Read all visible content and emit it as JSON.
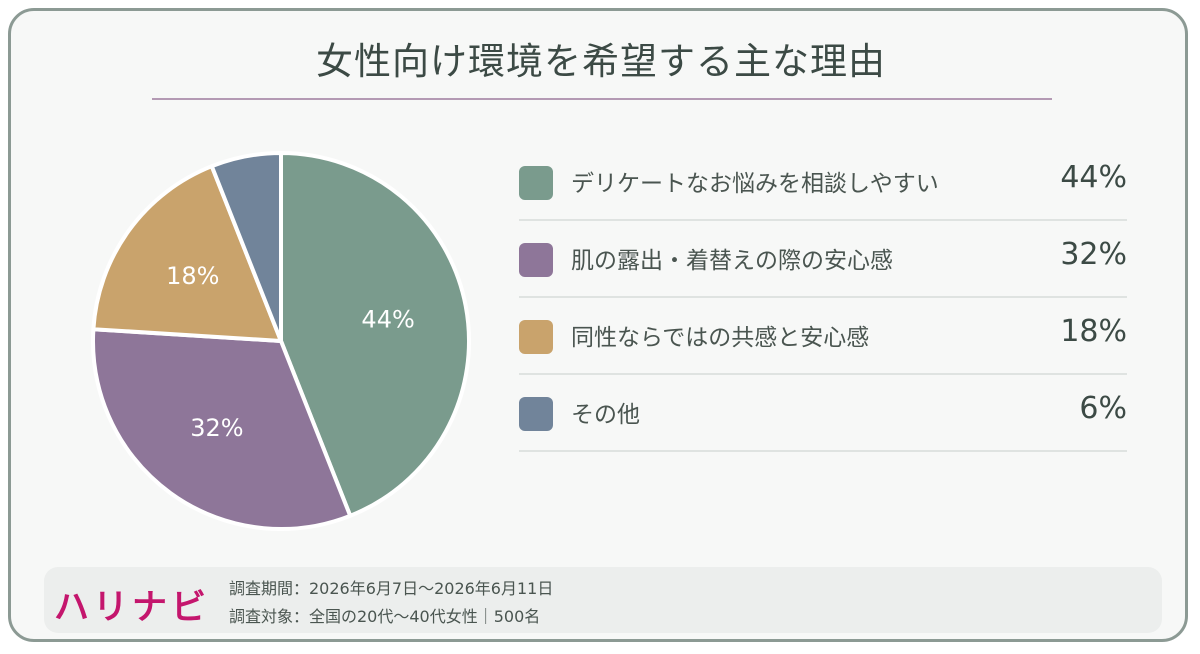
{
  "title": "女性向け環境を希望する主な理由",
  "chart_data": {
    "type": "pie",
    "categories": [
      "デリケートなお悩みを相談しやすい",
      "肌の露出・着替えの際の安心感",
      "同性ならではの共感と安心感",
      "その他"
    ],
    "values": [
      44,
      32,
      18,
      6
    ],
    "slice_labels": [
      "44%",
      "32%",
      "18%",
      ""
    ],
    "value_labels": [
      "44%",
      "32%",
      "18%",
      "6%"
    ],
    "colors": [
      "#7a9b8d",
      "#8e7699",
      "#c9a36c",
      "#71849a"
    ],
    "start": "12 o'clock",
    "direction": "clockwise",
    "legend_position": "right"
  },
  "footer": {
    "logo": "ハリナビ",
    "survey_period": "調査期間：2026年6月7日～2026年6月11日",
    "survey_target": "調査対象：全国の20代～40代女性｜500名"
  }
}
